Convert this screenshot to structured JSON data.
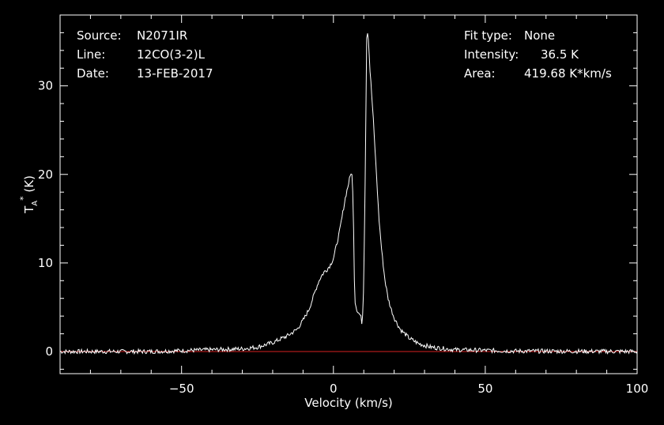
{
  "header_left": {
    "source_label": "Source:",
    "source_value": "N2071IR",
    "line_label": "Line:",
    "line_value": "12CO(3-2)L",
    "date_label": "Date:",
    "date_value": "13-FEB-2017"
  },
  "header_right": {
    "fit_label": "Fit type:",
    "fit_value": "None",
    "intensity_label": "Intensity:",
    "intensity_value": "36.5 K",
    "area_label": "Area:",
    "area_value": "419.68 K*km/s"
  },
  "chart_data": {
    "type": "line",
    "xlabel": "Velocity (km/s)",
    "ylabel": "T",
    "ylabel_sub": "A",
    "ylabel_sup": "*",
    "ylabel_unit": "(K)",
    "xlim": [
      -90,
      100
    ],
    "ylim": [
      -2.5,
      38
    ],
    "x_ticks": [
      -50,
      0,
      50,
      100
    ],
    "x_tick_labels": [
      "−50",
      "0",
      "50",
      "100"
    ],
    "y_ticks": [
      0,
      10,
      20,
      30
    ],
    "y_tick_labels": [
      "0",
      "10",
      "20",
      "30"
    ],
    "baseline": 0,
    "colors": {
      "spectrum": "#ffffff",
      "baseline": "#d62020",
      "frame": "#ffffff",
      "background": "#000000"
    },
    "series": [
      {
        "x": [
          -90,
          -60,
          -40,
          -30,
          -25,
          -20,
          -15,
          -12,
          -10,
          -8,
          -6,
          -5,
          -4,
          -3,
          -2,
          -1,
          0,
          1,
          2,
          3,
          4,
          5,
          6,
          6.5,
          7,
          7.5,
          8,
          9,
          9.5,
          10,
          10.5,
          11,
          11.5,
          12,
          13,
          14,
          15,
          16,
          17,
          18,
          19,
          20,
          22,
          25,
          28,
          32,
          40,
          60,
          100
        ],
        "y": [
          0,
          0,
          0.2,
          0.3,
          0.5,
          1.0,
          1.8,
          2.5,
          3.5,
          4.8,
          6.8,
          7.8,
          8.5,
          9.0,
          9.3,
          9.8,
          10.5,
          12.0,
          13.5,
          15.5,
          17.5,
          19.0,
          20.5,
          17.0,
          6.0,
          5.0,
          4.5,
          4.0,
          3.0,
          8.0,
          21.0,
          36.5,
          35.5,
          32.0,
          27.0,
          21.0,
          15.0,
          11.0,
          8.0,
          6.0,
          4.8,
          3.8,
          2.5,
          1.5,
          0.9,
          0.5,
          0.2,
          0.05,
          0
        ]
      }
    ]
  }
}
